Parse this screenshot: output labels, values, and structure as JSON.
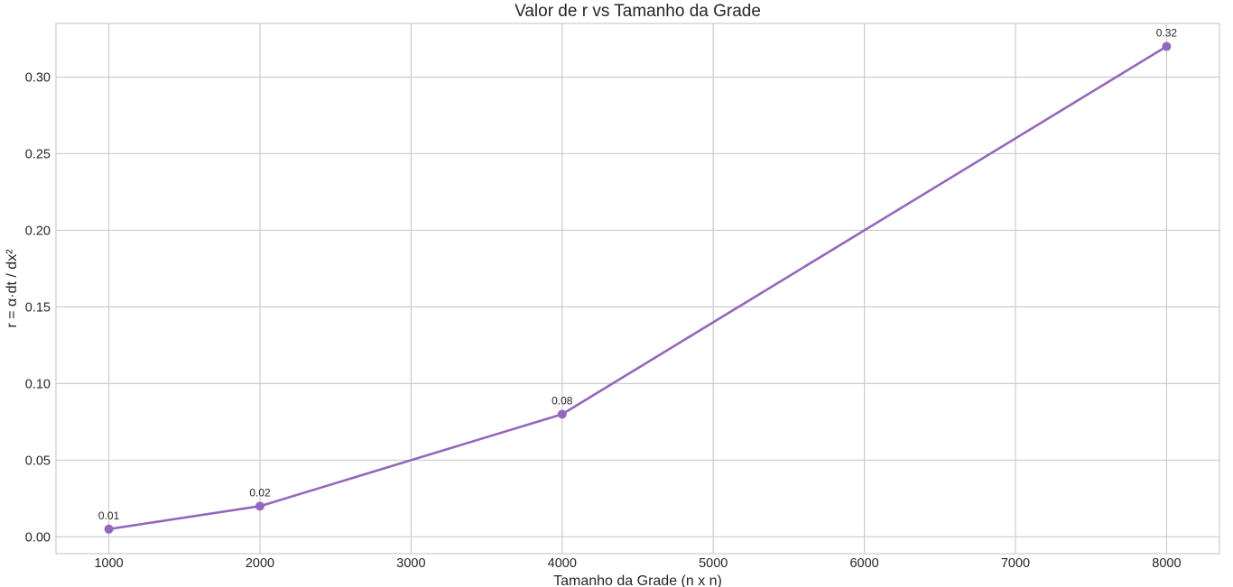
{
  "chart_data": {
    "type": "line",
    "title": "Valor de r vs Tamanho da Grade",
    "xlabel": "Tamanho da Grade (n x n)",
    "ylabel": "r = α·dt / dx²",
    "x": [
      1000,
      2000,
      4000,
      8000
    ],
    "series": [
      {
        "values": [
          0.005,
          0.02,
          0.08,
          0.32
        ],
        "data_labels": [
          "0.01",
          "0.02",
          "0.08",
          "0.32"
        ]
      }
    ],
    "xlim": [
      650,
      8350
    ],
    "ylim": [
      -0.011,
      0.335
    ],
    "x_ticks": [
      1000,
      2000,
      3000,
      4000,
      5000,
      6000,
      7000,
      8000
    ],
    "x_tick_labels": [
      "1000",
      "2000",
      "3000",
      "4000",
      "5000",
      "6000",
      "7000",
      "8000"
    ],
    "y_ticks": [
      0.0,
      0.05,
      0.1,
      0.15,
      0.2,
      0.25,
      0.3
    ],
    "y_tick_labels": [
      "0.00",
      "0.05",
      "0.10",
      "0.15",
      "0.20",
      "0.25",
      "0.30"
    ],
    "grid": true,
    "legend": "none",
    "colors": {
      "series": "#9467bd",
      "grid": "#cccccc",
      "frame": "#cccccc",
      "text": "#262626"
    }
  }
}
